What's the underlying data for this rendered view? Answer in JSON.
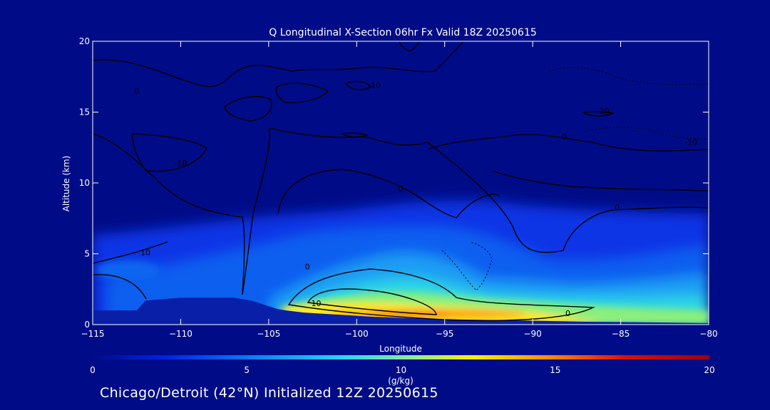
{
  "chart_data": {
    "type": "heatmap",
    "title": "Q Longitudinal X-Section 06hr  Fx Valid 18Z 20250615",
    "xlabel": "Longitude",
    "ylabel": "Altitude (km)",
    "xlim": [
      -115,
      -80
    ],
    "ylim": [
      0,
      20
    ],
    "x_ticks": [
      -115,
      -110,
      -105,
      -100,
      -95,
      -90,
      -85,
      -80
    ],
    "y_ticks": [
      0,
      5,
      10,
      15,
      20
    ],
    "grid": false,
    "colorbar": {
      "label": "(g/kg)",
      "range": [
        0,
        20
      ],
      "ticks": [
        0,
        5,
        10,
        15,
        20
      ],
      "colors": [
        "#000c87",
        "#0022e8",
        "#0a78f2",
        "#22d6f2",
        "#8cf08a",
        "#ffee00",
        "#ff8a00",
        "#e01000",
        "#9a0000"
      ]
    },
    "contour_labels": [
      {
        "text": "10",
        "x": -112,
        "y": 4.9
      },
      {
        "text": "0",
        "x": -102.8,
        "y": 3.9
      },
      {
        "text": "10",
        "x": -102.3,
        "y": 1.3
      },
      {
        "text": "0",
        "x": -88,
        "y": 0.6
      },
      {
        "text": "-10",
        "x": -110,
        "y": 11.2
      },
      {
        "text": "-10",
        "x": -99,
        "y": 16.7
      },
      {
        "text": "-10",
        "x": -86,
        "y": 14.9
      },
      {
        "text": "-10",
        "x": -81,
        "y": 12.7
      },
      {
        "text": "0",
        "x": -88.2,
        "y": 13.1
      },
      {
        "text": "0",
        "x": -85.2,
        "y": 8.1
      },
      {
        "text": "0",
        "x": -112.5,
        "y": 16.3
      },
      {
        "text": "0",
        "x": -97.5,
        "y": 9.4
      }
    ],
    "terrain_km": {
      "x": [
        -115,
        -112.5,
        -112,
        -110,
        -107,
        -106,
        -105,
        -104.5,
        -104,
        -103,
        -101,
        -99,
        -97,
        -94,
        -91,
        -89,
        -87,
        -85,
        -83,
        -81,
        -80
      ],
      "y": [
        1.0,
        1.0,
        1.7,
        1.9,
        1.9,
        1.7,
        1.3,
        1.1,
        1.0,
        0.85,
        0.7,
        0.55,
        0.45,
        0.35,
        0.3,
        0.25,
        0.2,
        0.18,
        0.15,
        0.12,
        0.1
      ]
    }
  },
  "footer": "Chicago/Detroit (42°N) Initialized 12Z 20250615"
}
